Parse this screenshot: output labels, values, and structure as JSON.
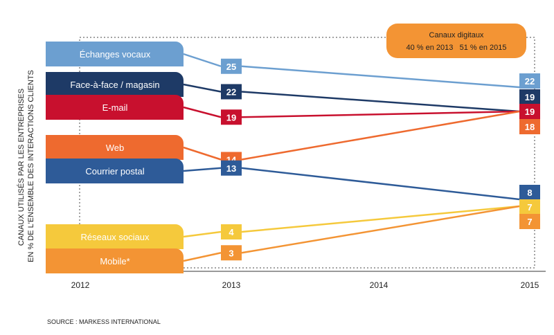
{
  "chart_data": {
    "type": "line",
    "x": [
      "2012",
      "2013",
      "2014",
      "2015"
    ],
    "ylabel_lines": [
      "CANAUX UTILISÉS PAR LES ENTREPRISES",
      "EN % DE L'ENSEMBLE DES INTERACTIONS CLIENTS"
    ],
    "series": [
      {
        "name": "Échanges vocaux",
        "color": "#6c9fd0",
        "values": [
          null,
          25,
          null,
          22
        ]
      },
      {
        "name": "Face-à-face / magasin",
        "color": "#1e3a66",
        "values": [
          null,
          22,
          null,
          19
        ]
      },
      {
        "name": "E-mail",
        "color": "#c8102e",
        "values": [
          null,
          19,
          null,
          19
        ]
      },
      {
        "name": "Web",
        "color": "#ee6a2f",
        "values": [
          null,
          14,
          null,
          18
        ]
      },
      {
        "name": "Courrier postal",
        "color": "#2e5b98",
        "values": [
          null,
          13,
          null,
          8
        ]
      },
      {
        "name": "Réseaux sociaux",
        "color": "#f5c93c",
        "values": [
          null,
          4,
          null,
          7
        ]
      },
      {
        "name": "Mobile*",
        "color": "#f39434",
        "values": [
          null,
          3,
          null,
          7
        ]
      }
    ],
    "annotation": {
      "title": "Canaux digitaux",
      "text": "40 % en 2013   51 % en 2015",
      "color": "#f39434"
    },
    "grid": false,
    "legend": "left"
  },
  "source": "SOURCE : MARKESS INTERNATIONAL"
}
